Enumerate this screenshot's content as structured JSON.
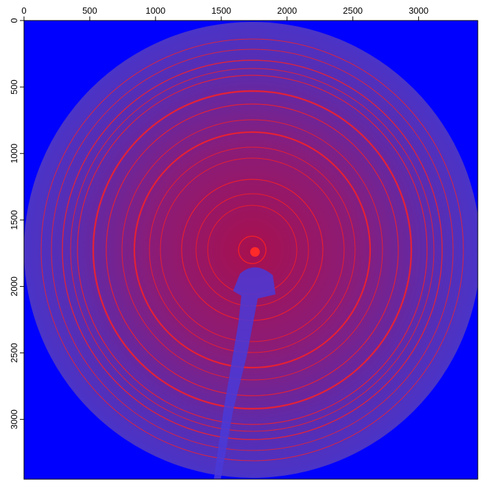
{
  "chart_data": {
    "type": "image",
    "xlim": [
      0,
      3450
    ],
    "ylim": [
      0,
      3450
    ],
    "xticks": [
      0,
      500,
      1000,
      1500,
      2000,
      2500,
      3000
    ],
    "yticks": [
      0,
      500,
      1000,
      1500,
      2000,
      2500,
      3000
    ]
  }
}
